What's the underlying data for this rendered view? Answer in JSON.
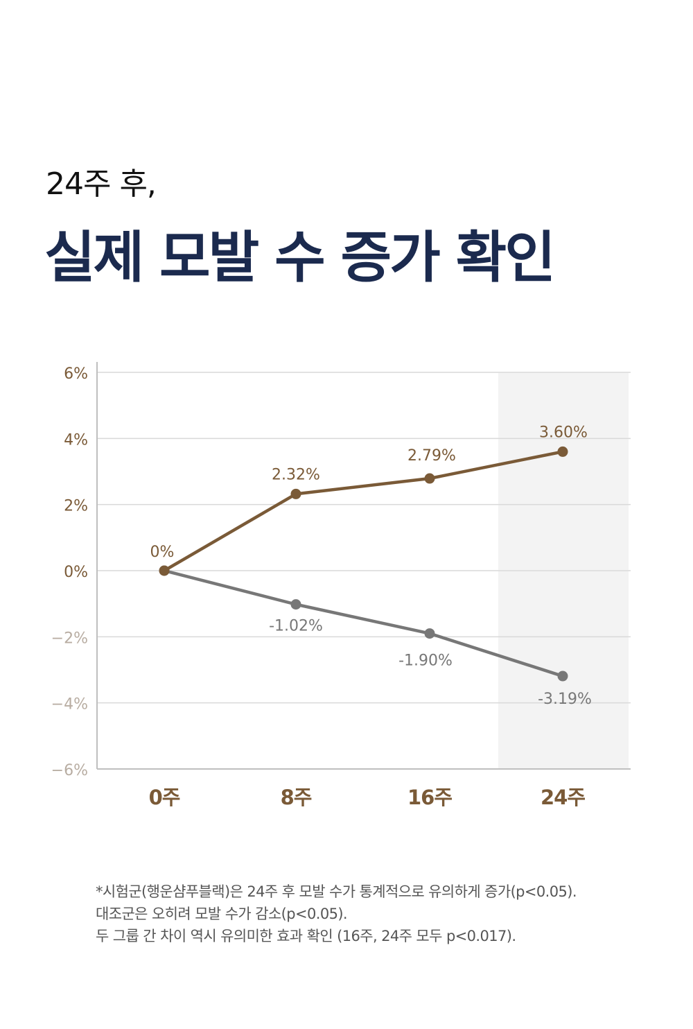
{
  "header": {
    "subtitle": "24주 후,",
    "title": "실제 모발 수 증가 확인"
  },
  "colors": {
    "test": "#7a5a37",
    "control": "#777777",
    "axis_pos": "#7a5a37",
    "axis_neg": "#b8ada2",
    "highlight": "#f3f3f3",
    "title": "#1b2a4e"
  },
  "chart_data": {
    "type": "line",
    "categories": [
      "0주",
      "8주",
      "16주",
      "24주"
    ],
    "ylim": [
      -6,
      6
    ],
    "yticks": [
      {
        "value": 6,
        "label": "6%"
      },
      {
        "value": 4,
        "label": "4%"
      },
      {
        "value": 2,
        "label": "2%"
      },
      {
        "value": 0,
        "label": "0%"
      },
      {
        "value": -2,
        "label": "−2%"
      },
      {
        "value": -4,
        "label": "−4%"
      },
      {
        "value": -6,
        "label": "−6%"
      }
    ],
    "highlight_category": "24주",
    "grid": true,
    "series": [
      {
        "key": "test",
        "values": [
          0,
          2.32,
          2.79,
          3.6
        ],
        "labels": [
          "0%",
          "2.32%",
          "2.79%",
          "3.60%"
        ]
      },
      {
        "key": "control",
        "values": [
          0,
          -1.02,
          -1.9,
          -3.19
        ],
        "labels": [
          "",
          "-1.02%",
          "-1.90%",
          "-3.19%"
        ]
      }
    ]
  },
  "footnote": {
    "line1": "*시험군(행운샴푸블랙)은 24주 후 모발 수가 통계적으로 유의하게 증가(p<0.05).",
    "line2": "대조군은 오히려 모발 수가 감소(p<0.05).",
    "line3": "두 그룹 간 차이 역시 유의미한 효과 확인 (16주, 24주 모두 p<0.017)."
  }
}
